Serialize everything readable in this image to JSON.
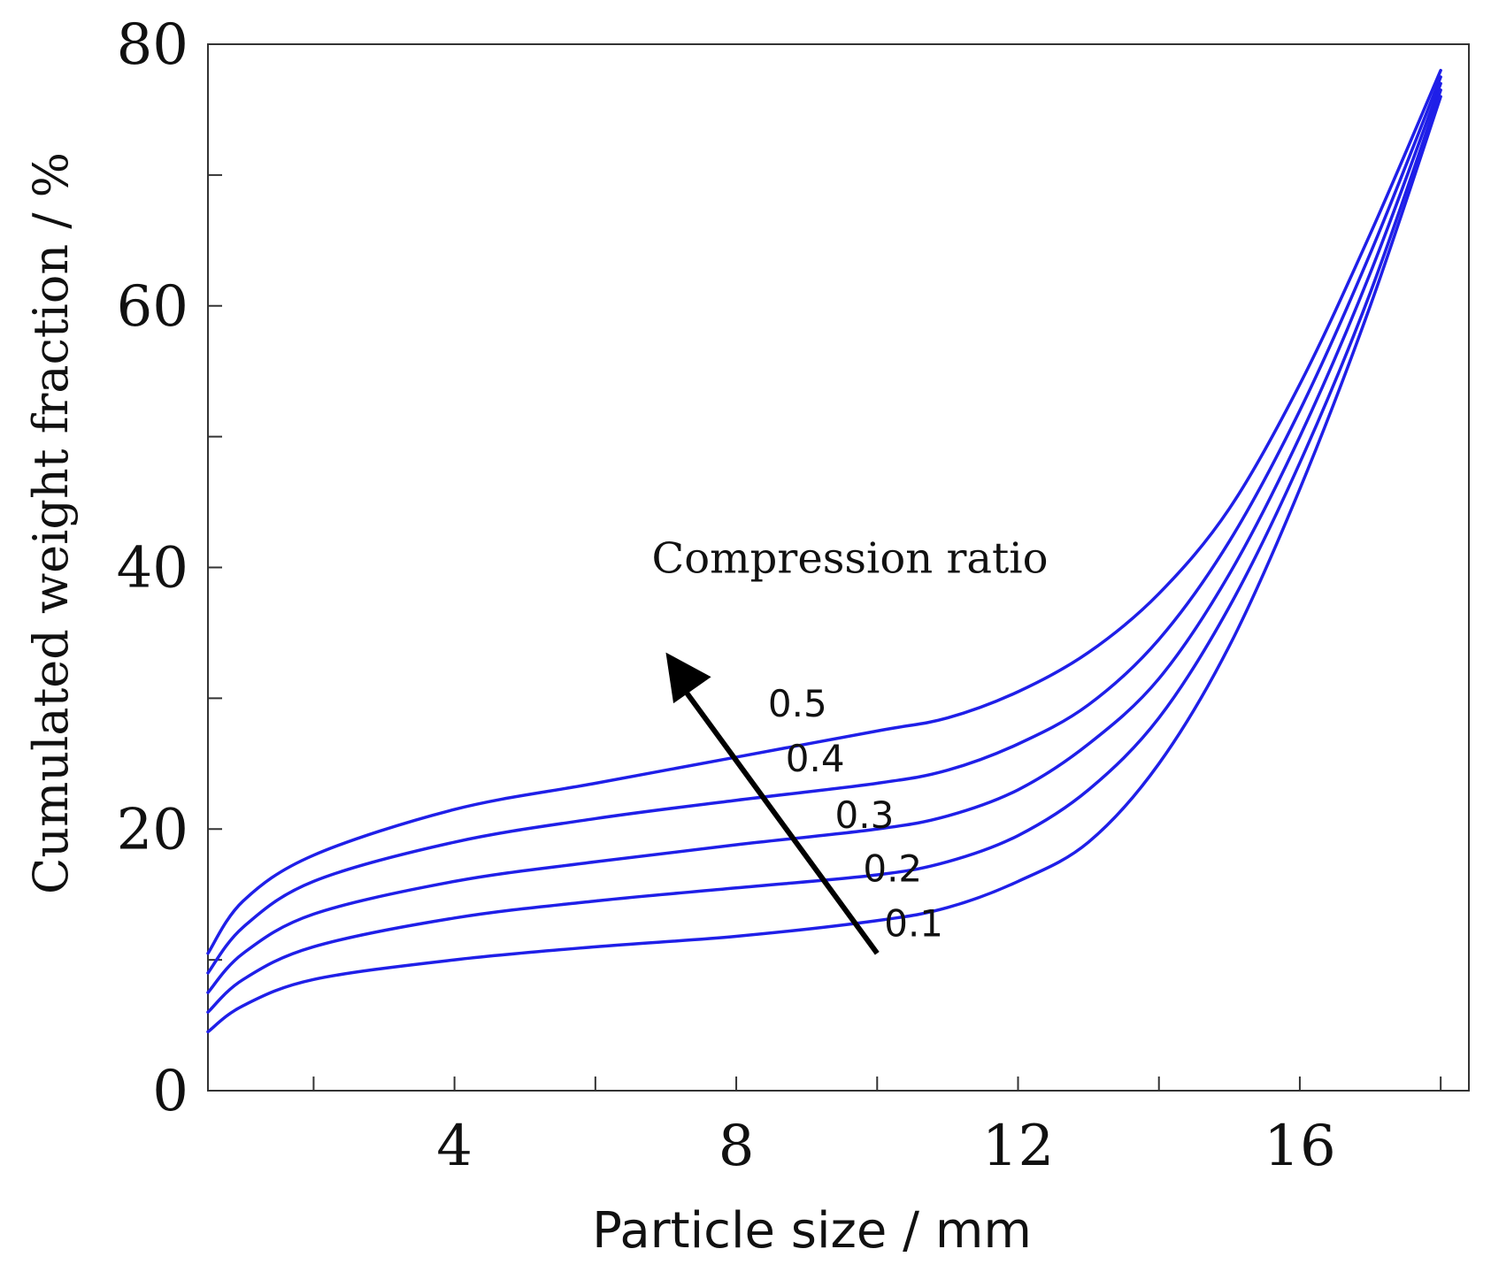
{
  "chart_data": {
    "type": "line",
    "title": "",
    "xlabel": "Particle size / mm",
    "ylabel": "Cumulated weight fraction / %",
    "xlim": [
      0.5,
      18.4
    ],
    "ylim": [
      0,
      80
    ],
    "x_ticks": [
      4,
      8,
      12,
      16
    ],
    "x_minor_ticks": [
      2,
      4,
      6,
      8,
      10,
      12,
      14,
      16,
      18
    ],
    "y_ticks": [
      0,
      20,
      40,
      60,
      80
    ],
    "y_minor_ticks": [
      10,
      30,
      50,
      70
    ],
    "annotation": "Compression ratio",
    "series_color": "#1f1fe8",
    "series": [
      {
        "name": "0.1",
        "x": [
          0.5,
          1,
          2,
          4,
          6,
          8,
          10,
          11,
          12,
          13,
          14,
          15,
          16,
          17,
          18
        ],
        "y": [
          4.5,
          6.5,
          8.5,
          10.0,
          11.0,
          11.8,
          13.0,
          14.0,
          16.0,
          19.0,
          25.0,
          34.0,
          46.0,
          60.0,
          76.0
        ]
      },
      {
        "name": "0.2",
        "x": [
          0.5,
          1,
          2,
          4,
          6,
          8,
          10,
          11,
          12,
          13,
          14,
          15,
          16,
          17,
          18
        ],
        "y": [
          6.0,
          8.5,
          11.0,
          13.2,
          14.5,
          15.5,
          16.5,
          17.5,
          19.5,
          23.0,
          28.5,
          37.0,
          48.0,
          61.0,
          76.5
        ]
      },
      {
        "name": "0.3",
        "x": [
          0.5,
          1,
          2,
          4,
          6,
          8,
          10,
          11,
          12,
          13,
          14,
          15,
          16,
          17,
          18
        ],
        "y": [
          7.5,
          10.5,
          13.5,
          16.0,
          17.5,
          18.8,
          20.0,
          21.0,
          23.0,
          26.5,
          31.5,
          39.5,
          50.0,
          62.5,
          77.0
        ]
      },
      {
        "name": "0.4",
        "x": [
          0.5,
          1,
          2,
          4,
          6,
          8,
          10,
          11,
          12,
          13,
          14,
          15,
          16,
          17,
          18
        ],
        "y": [
          9.0,
          12.5,
          16.0,
          19.0,
          20.8,
          22.2,
          23.5,
          24.5,
          26.5,
          29.5,
          34.5,
          42.0,
          52.0,
          64.0,
          77.5
        ]
      },
      {
        "name": "0.5",
        "x": [
          0.5,
          1,
          2,
          4,
          6,
          8,
          10,
          11,
          12,
          13,
          14,
          15,
          16,
          17,
          18
        ],
        "y": [
          10.5,
          14.5,
          18.0,
          21.5,
          23.5,
          25.5,
          27.5,
          28.5,
          30.5,
          33.5,
          38.0,
          44.5,
          54.0,
          65.5,
          78.0
        ]
      }
    ]
  }
}
